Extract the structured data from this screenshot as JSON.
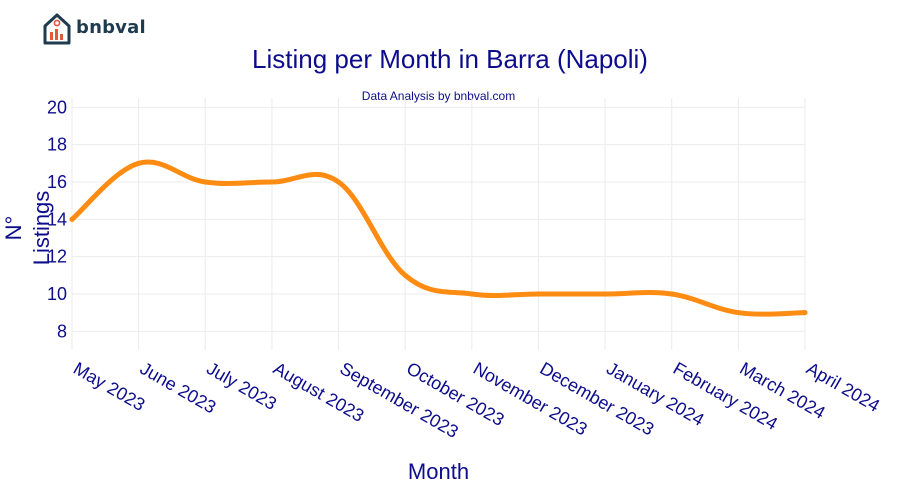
{
  "brand": {
    "name": "bnbval",
    "logo_icon": "house-chart-icon"
  },
  "colors": {
    "line": "#ff8c12",
    "title": "#0d0d8c",
    "grid": "#ebebeb"
  },
  "chart_data": {
    "type": "line",
    "title": "Listing per Month in Barra (Napoli)",
    "subtitle": "Data Analysis by bnbval.com",
    "xlabel": "Month",
    "ylabel": "N° Listings",
    "categories": [
      "May 2023",
      "June 2023",
      "July 2023",
      "August 2023",
      "September 2023",
      "October 2023",
      "November 2023",
      "December 2023",
      "January 2024",
      "February 2024",
      "March 2024",
      "April 2024"
    ],
    "series": [
      {
        "name": "Listings",
        "values": [
          14,
          17,
          16,
          16,
          16,
          11,
          10,
          10,
          10,
          10,
          9,
          9
        ]
      }
    ],
    "yticks": [
      8,
      10,
      12,
      14,
      16,
      18,
      20
    ],
    "ylim": [
      7,
      20.5
    ],
    "grid": true,
    "legend": "none"
  }
}
